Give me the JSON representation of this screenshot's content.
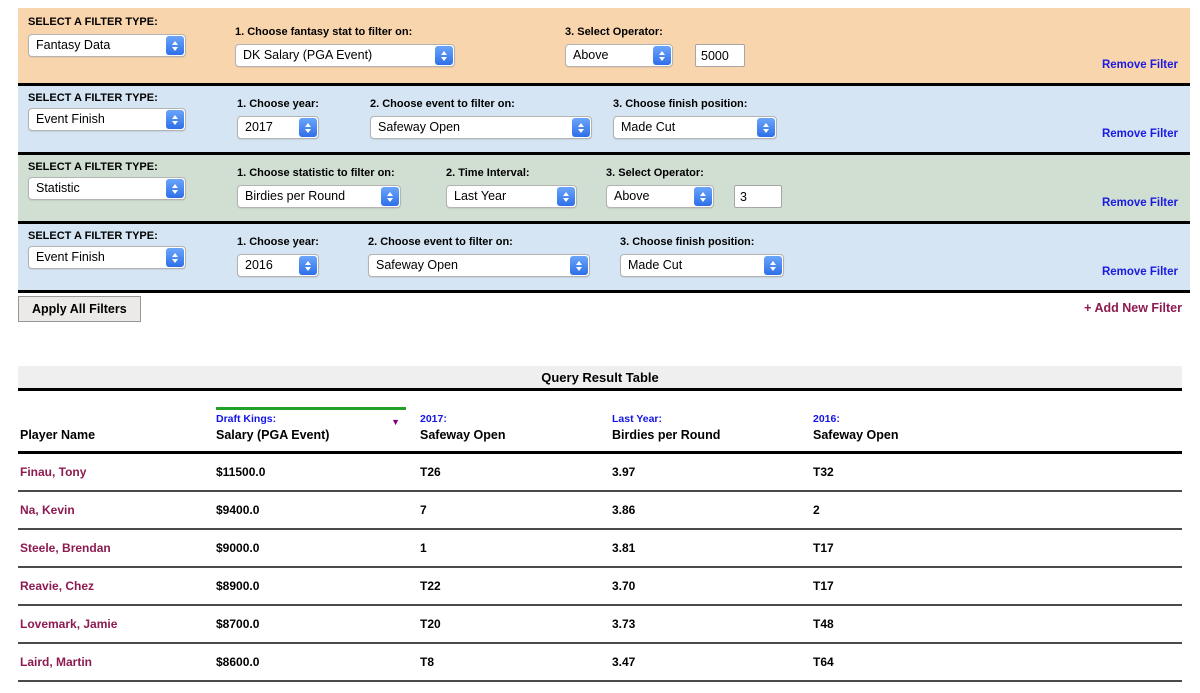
{
  "filter_type_label": "SELECT A FILTER TYPE:",
  "remove_filter_label": "Remove Filter",
  "apply_button_label": "Apply All Filters",
  "add_filter_label": "+ Add New Filter",
  "colors": {
    "row_peach": "#f9d5ae",
    "row_blue": "#d5e5f3",
    "row_green": "#d0dfd2",
    "link_blue": "#1b1be0",
    "maroon": "#8d1a50",
    "header_label_blue": "#1414e6",
    "sort_underline_green": "#22a027",
    "sort_caret_purple": "#800080"
  },
  "filters": [
    {
      "type_value": "Fantasy Data",
      "color": "peach",
      "tall": true,
      "fields": [
        {
          "label": "1. Choose fantasy stat to filter on:",
          "kind": "select",
          "value": "DK Salary (PGA Event)"
        },
        {
          "label": "3. Select Operator:",
          "kind": "select",
          "value": "Above"
        },
        {
          "label": "",
          "kind": "input",
          "value": "5000"
        }
      ]
    },
    {
      "type_value": "Event Finish",
      "color": "blue",
      "tall": false,
      "fields": [
        {
          "label": "1. Choose year:",
          "kind": "select",
          "value": "2017"
        },
        {
          "label": "2. Choose event to filter on:",
          "kind": "select",
          "value": "Safeway Open"
        },
        {
          "label": "3. Choose finish position:",
          "kind": "select",
          "value": "Made Cut"
        }
      ]
    },
    {
      "type_value": "Statistic",
      "color": "green",
      "tall": false,
      "fields": [
        {
          "label": "1. Choose statistic to filter on:",
          "kind": "select",
          "value": "Birdies per Round"
        },
        {
          "label": "2. Time Interval:",
          "kind": "select",
          "value": "Last Year"
        },
        {
          "label": "3. Select Operator:",
          "kind": "select",
          "value": "Above"
        },
        {
          "label": "",
          "kind": "input",
          "value": "3"
        }
      ]
    },
    {
      "type_value": "Event Finish",
      "color": "blue",
      "tall": false,
      "fields": [
        {
          "label": "1. Choose year:",
          "kind": "select",
          "value": "2016"
        },
        {
          "label": "2. Choose event to filter on:",
          "kind": "select",
          "value": "Safeway Open"
        },
        {
          "label": "3. Choose finish position:",
          "kind": "select",
          "value": "Made Cut"
        }
      ]
    }
  ],
  "result_table": {
    "title": "Query Result Table",
    "columns": [
      {
        "top_label": "",
        "label": "Player Name",
        "highlight": false,
        "sorted_desc": false
      },
      {
        "top_label": "Draft Kings:",
        "label": "Salary (PGA Event)",
        "highlight": true,
        "sorted_desc": true
      },
      {
        "top_label": "2017:",
        "label": "Safeway Open",
        "highlight": false,
        "sorted_desc": false
      },
      {
        "top_label": "Last Year:",
        "label": "Birdies per Round",
        "highlight": false,
        "sorted_desc": false
      },
      {
        "top_label": "2016:",
        "label": "Safeway Open",
        "highlight": false,
        "sorted_desc": false
      }
    ],
    "rows": [
      [
        "Finau, Tony",
        "$11500.0",
        "T26",
        "3.97",
        "T32"
      ],
      [
        "Na, Kevin",
        "$9400.0",
        "7",
        "3.86",
        "2"
      ],
      [
        "Steele, Brendan",
        "$9000.0",
        "1",
        "3.81",
        "T17"
      ],
      [
        "Reavie, Chez",
        "$8900.0",
        "T22",
        "3.70",
        "T17"
      ],
      [
        "Lovemark, Jamie",
        "$8700.0",
        "T20",
        "3.73",
        "T48"
      ],
      [
        "Laird, Martin",
        "$8600.0",
        "T8",
        "3.47",
        "T64"
      ]
    ]
  }
}
